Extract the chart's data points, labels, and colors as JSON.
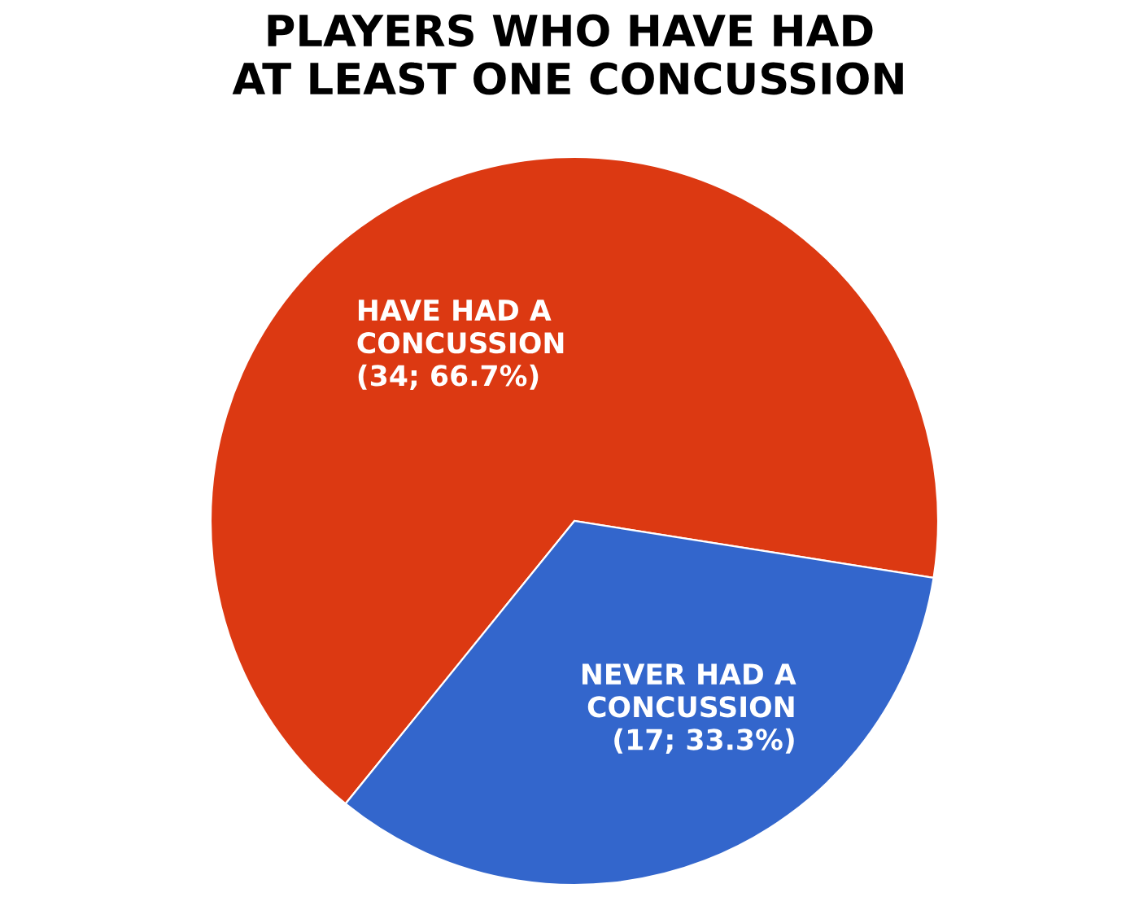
{
  "chart_data": {
    "type": "pie",
    "title": "PLAYERS WHO HAVE HAD\nAT LEAST ONE CONCUSSION",
    "categories": [
      "HAVE HAD A\nCONCUSSION",
      "NEVER HAD A\nCONCUSSION"
    ],
    "values": [
      34,
      17
    ],
    "value_labels": [
      "(34; 66.7%)",
      "(17; 33.3%)"
    ],
    "colors": [
      "#dc3912",
      "#3366cc"
    ]
  }
}
